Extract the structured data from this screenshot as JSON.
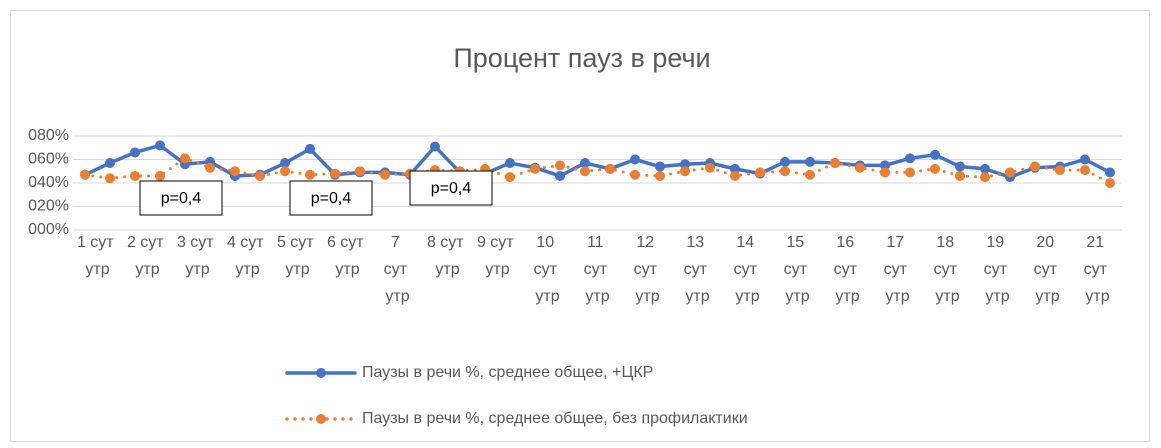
{
  "chart_data": {
    "type": "line",
    "title": "Процент пауз в речи",
    "categories": [
      "1 сут утр",
      null,
      "2 сут утр",
      null,
      "3 сут утр",
      null,
      "4 сут утр",
      null,
      "5 сут утр",
      null,
      "6 сут утр",
      null,
      "7 сут утр",
      null,
      "8 сут утр",
      null,
      "9 сут утр",
      null,
      "10 сут утр",
      null,
      "11 сут утр",
      null,
      "12 сут утр",
      null,
      "13 сут утр",
      null,
      "14 сут утр",
      null,
      "15 сут утр",
      null,
      "16 сут утр",
      null,
      "17 сут утр",
      null,
      "18 сут утр",
      null,
      "19 сут утр",
      null,
      "20 сут утр",
      null,
      "21 сут утр",
      null
    ],
    "series": [
      {
        "name": "Паузы в речи %, среднее общее, +ЦКР",
        "color": "#4472c4",
        "style": "solid",
        "values": [
          47,
          57,
          66,
          72,
          56,
          58,
          46,
          47,
          57,
          69,
          47,
          49,
          49,
          47,
          71,
          49,
          48,
          57,
          53,
          46,
          57,
          52,
          60,
          54,
          56,
          57,
          52,
          48,
          58,
          58,
          57,
          55,
          55,
          61,
          64,
          54,
          52,
          45,
          53,
          54,
          60,
          49
        ]
      },
      {
        "name": "Паузы в речи %, среднее общее, без профилактики",
        "color": "#ed7d31",
        "style": "dotted",
        "values": [
          47,
          44,
          46,
          46,
          61,
          53,
          50,
          46,
          50,
          47,
          48,
          50,
          47,
          48,
          51,
          50,
          52,
          45,
          52,
          55,
          50,
          52,
          47,
          46,
          50,
          53,
          46,
          49,
          50,
          47,
          57,
          53,
          49,
          49,
          52,
          46,
          45,
          49,
          54,
          51,
          51,
          40
        ]
      }
    ],
    "ylim": [
      0,
      80
    ],
    "yticks": [
      {
        "value": 0,
        "label": "000%"
      },
      {
        "value": 20,
        "label": "020%"
      },
      {
        "value": 40,
        "label": "040%"
      },
      {
        "value": 60,
        "label": "060%"
      },
      {
        "value": 80,
        "label": "080%"
      }
    ],
    "grid": true,
    "legend": "bottom",
    "annotations": [
      "p=0,4",
      "p=0,4",
      "p=0,4"
    ]
  }
}
